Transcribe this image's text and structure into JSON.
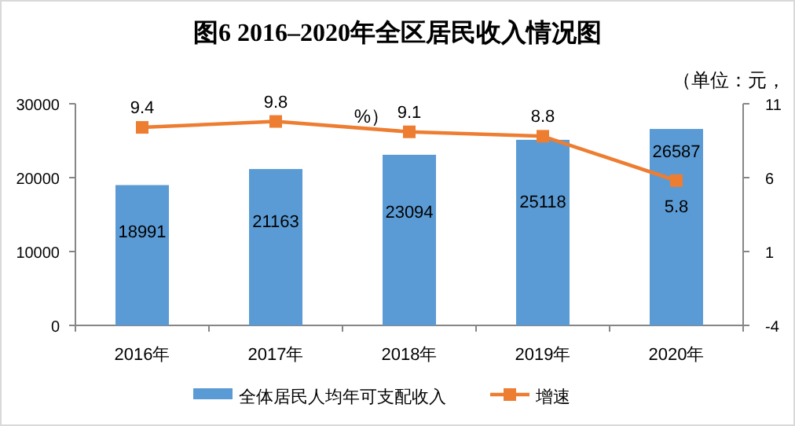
{
  "chart_data": {
    "type": "bar",
    "title": "图6  2016–2020年全区居民收入情况图",
    "annotations": [
      "（单位：元，",
      "%）"
    ],
    "categories": [
      "2016年",
      "2017年",
      "2018年",
      "2019年",
      "2020年"
    ],
    "series": [
      {
        "name": "全体居民人均年可支配收入",
        "color": "#5b9bd5",
        "values": [
          18991,
          21163,
          23094,
          25118,
          26587
        ]
      },
      {
        "name": "增速",
        "type": "line",
        "axis": "y2",
        "color": "#ed7d31",
        "marker": "square",
        "values": [
          9.4,
          9.8,
          9.1,
          8.8,
          5.8
        ]
      }
    ],
    "ylim": [
      0,
      30000
    ],
    "yticks": [
      0,
      10000,
      20000,
      30000
    ],
    "y2lim": [
      -4,
      11
    ],
    "y2ticks": [
      -4,
      1,
      6,
      11
    ],
    "data_labels": true,
    "legend": "bottom"
  }
}
